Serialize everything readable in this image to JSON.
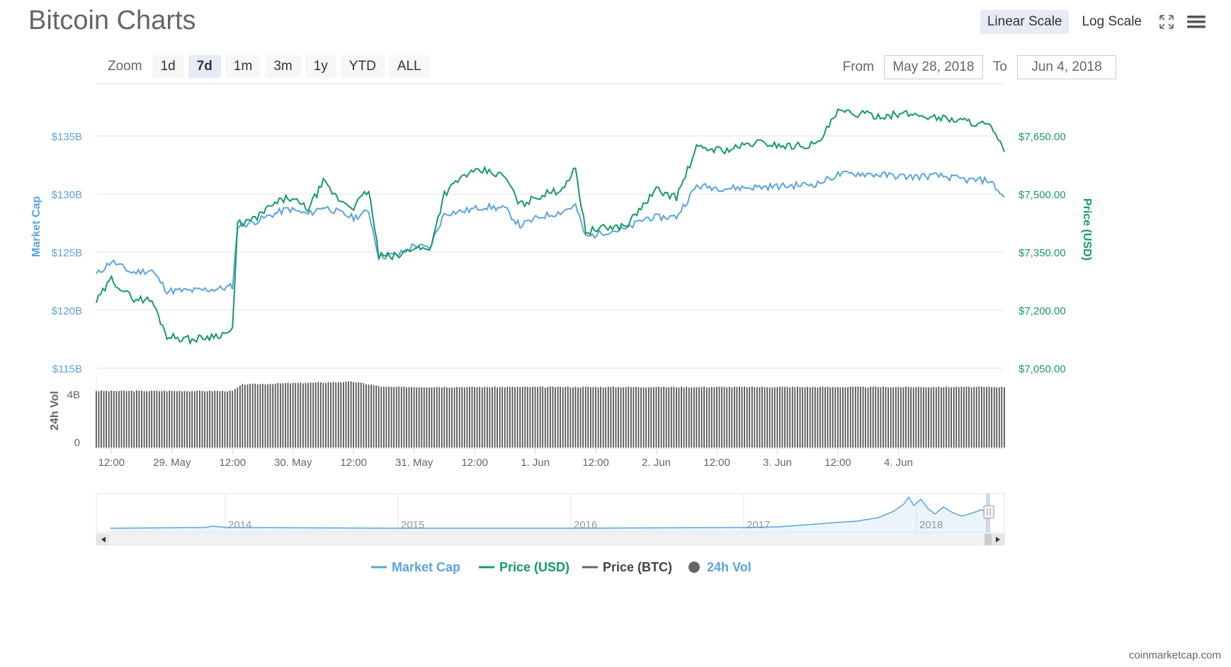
{
  "title": "Bitcoin Charts",
  "scale_buttons": {
    "linear": "Linear Scale",
    "log": "Log Scale",
    "active": "linear"
  },
  "icons": {
    "fullscreen": "expand-icon",
    "menu": "hamburger-menu-icon"
  },
  "zoom": {
    "label": "Zoom",
    "options": [
      "1d",
      "7d",
      "1m",
      "3m",
      "1y",
      "YTD",
      "ALL"
    ],
    "active": "7d"
  },
  "range": {
    "from_label": "From",
    "from_value": "May 28, 2018",
    "to_label": "To",
    "to_value": "Jun 4, 2018"
  },
  "credit": "coinmarketcap.com",
  "colors": {
    "market_cap": "#5ba4de",
    "price_usd": "#169a66",
    "price_btc": "#666666",
    "volume": "#555555",
    "grid": "#e6e6e6",
    "axis_text": "#666666"
  },
  "chart_data": {
    "type": "line",
    "x_range": [
      "2018-05-28T09:00",
      "2018-06-04T21:00"
    ],
    "x_ticks": [
      "12:00",
      "29. May",
      "12:00",
      "30. May",
      "12:00",
      "31. May",
      "12:00",
      "1. Jun",
      "12:00",
      "2. Jun",
      "12:00",
      "3. Jun",
      "12:00",
      "4. Jun"
    ],
    "y_left": {
      "label": "Market Cap",
      "ticks": [
        "$115B",
        "$120B",
        "$125B",
        "$130B",
        "$135B"
      ],
      "range": [
        115,
        140
      ]
    },
    "y_right": {
      "label": "Price (USD)",
      "ticks": [
        "$7,050.00",
        "$7,200.00",
        "$7,350.00",
        "$7,500.00",
        "$7,650.00"
      ],
      "range": [
        7050,
        7800
      ]
    },
    "volume_axis": {
      "label": "24h Vol",
      "ticks": [
        "0",
        "4B"
      ]
    },
    "series": [
      {
        "name": "Market Cap",
        "unit": "B USD",
        "points": [
          [
            "2018-05-28T09:00",
            123.2
          ],
          [
            "2018-05-28T12:00",
            124.4
          ],
          [
            "2018-05-28T16:00",
            123.4
          ],
          [
            "2018-05-28T20:00",
            123.6
          ],
          [
            "2018-05-28T23:00",
            121.8
          ],
          [
            "2018-05-29T04:00",
            121.8
          ],
          [
            "2018-05-29T10:00",
            122.0
          ],
          [
            "2018-05-29T12:00",
            122.2
          ],
          [
            "2018-05-29T13:00",
            127.5
          ],
          [
            "2018-05-29T16:00",
            127.8
          ],
          [
            "2018-05-29T20:00",
            128.5
          ],
          [
            "2018-05-29T23:00",
            129.0
          ],
          [
            "2018-05-30T03:00",
            128.5
          ],
          [
            "2018-05-30T06:00",
            129.2
          ],
          [
            "2018-05-30T09:00",
            128.7
          ],
          [
            "2018-05-30T12:00",
            128.2
          ],
          [
            "2018-05-30T15:00",
            128.8
          ],
          [
            "2018-05-30T17:00",
            124.8
          ],
          [
            "2018-05-30T21:00",
            125.0
          ],
          [
            "2018-05-31T00:00",
            125.8
          ],
          [
            "2018-05-31T03:00",
            125.5
          ],
          [
            "2018-05-31T06:00",
            128.6
          ],
          [
            "2018-05-31T10:00",
            128.8
          ],
          [
            "2018-05-31T14:00",
            129.2
          ],
          [
            "2018-05-31T18:00",
            129.0
          ],
          [
            "2018-05-31T21:00",
            127.5
          ],
          [
            "2018-06-01T01:00",
            128.3
          ],
          [
            "2018-06-01T05:00",
            128.7
          ],
          [
            "2018-06-01T08:00",
            129.3
          ],
          [
            "2018-06-01T10:00",
            126.5
          ],
          [
            "2018-06-01T14:00",
            127.0
          ],
          [
            "2018-06-01T18:00",
            127.2
          ],
          [
            "2018-06-01T22:00",
            128.2
          ],
          [
            "2018-06-02T04:00",
            128.3
          ],
          [
            "2018-06-02T08:00",
            131.0
          ],
          [
            "2018-06-02T14:00",
            130.8
          ],
          [
            "2018-06-02T20:00",
            130.9
          ],
          [
            "2018-06-03T02:00",
            131.0
          ],
          [
            "2018-06-03T08:00",
            131.2
          ],
          [
            "2018-06-03T12:00",
            132.0
          ],
          [
            "2018-06-03T16:00",
            132.1
          ],
          [
            "2018-06-03T20:00",
            132.0
          ],
          [
            "2018-06-04T02:00",
            131.8
          ],
          [
            "2018-06-04T08:00",
            131.9
          ],
          [
            "2018-06-04T14:00",
            131.5
          ],
          [
            "2018-06-04T18:00",
            131.5
          ],
          [
            "2018-06-04T21:00",
            130.0
          ]
        ]
      },
      {
        "name": "Price (USD)",
        "unit": "USD",
        "points": [
          [
            "2018-05-28T09:00",
            7225
          ],
          [
            "2018-05-28T12:00",
            7285
          ],
          [
            "2018-05-28T16:00",
            7235
          ],
          [
            "2018-05-28T20:00",
            7228
          ],
          [
            "2018-05-28T23:00",
            7135
          ],
          [
            "2018-05-29T04:00",
            7125
          ],
          [
            "2018-05-29T10:00",
            7140
          ],
          [
            "2018-05-29T12:00",
            7148
          ],
          [
            "2018-05-29T13:00",
            7430
          ],
          [
            "2018-05-29T16:00",
            7440
          ],
          [
            "2018-05-29T20:00",
            7480
          ],
          [
            "2018-05-29T23:00",
            7500
          ],
          [
            "2018-05-30T03:00",
            7470
          ],
          [
            "2018-05-30T06:00",
            7540
          ],
          [
            "2018-05-30T09:00",
            7495
          ],
          [
            "2018-05-30T12:00",
            7475
          ],
          [
            "2018-05-30T15:00",
            7520
          ],
          [
            "2018-05-30T17:00",
            7345
          ],
          [
            "2018-05-30T21:00",
            7345
          ],
          [
            "2018-05-31T00:00",
            7370
          ],
          [
            "2018-05-31T03:00",
            7360
          ],
          [
            "2018-05-31T06:00",
            7510
          ],
          [
            "2018-05-31T10:00",
            7560
          ],
          [
            "2018-05-31T14:00",
            7570
          ],
          [
            "2018-05-31T18:00",
            7555
          ],
          [
            "2018-05-31T21:00",
            7480
          ],
          [
            "2018-06-01T01:00",
            7505
          ],
          [
            "2018-06-01T05:00",
            7520
          ],
          [
            "2018-06-01T08:00",
            7575
          ],
          [
            "2018-06-01T10:00",
            7410
          ],
          [
            "2018-06-01T14:00",
            7420
          ],
          [
            "2018-06-01T18:00",
            7425
          ],
          [
            "2018-06-02T00:00",
            7520
          ],
          [
            "2018-06-02T04:00",
            7500
          ],
          [
            "2018-06-02T08:00",
            7630
          ],
          [
            "2018-06-02T14:00",
            7625
          ],
          [
            "2018-06-02T20:00",
            7645
          ],
          [
            "2018-06-03T02:00",
            7635
          ],
          [
            "2018-06-03T08:00",
            7640
          ],
          [
            "2018-06-03T12:00",
            7725
          ],
          [
            "2018-06-03T16:00",
            7720
          ],
          [
            "2018-06-03T20:00",
            7715
          ],
          [
            "2018-06-04T02:00",
            7720
          ],
          [
            "2018-06-04T08:00",
            7710
          ],
          [
            "2018-06-04T14:00",
            7700
          ],
          [
            "2018-06-04T18:00",
            7690
          ],
          [
            "2018-06-04T21:00",
            7620
          ]
        ]
      },
      {
        "name": "Price (BTC)",
        "points": []
      },
      {
        "name": "24h Vol",
        "unit": "B USD",
        "type": "column",
        "points": [
          [
            "2018-05-28T09:00",
            4.3
          ],
          [
            "2018-05-29T12:00",
            4.3
          ],
          [
            "2018-05-29T14:00",
            4.8
          ],
          [
            "2018-05-30T12:00",
            5.0
          ],
          [
            "2018-05-30T18:00",
            4.6
          ],
          [
            "2018-06-04T21:00",
            4.6
          ]
        ]
      }
    ],
    "navigator": {
      "x_labels": [
        "2014",
        "2015",
        "2016",
        "2017",
        "2018"
      ]
    },
    "legend": [
      "Market Cap",
      "Price (USD)",
      "Price (BTC)",
      "24h Vol"
    ],
    "legend_position": "bottom-center",
    "grid": true
  }
}
